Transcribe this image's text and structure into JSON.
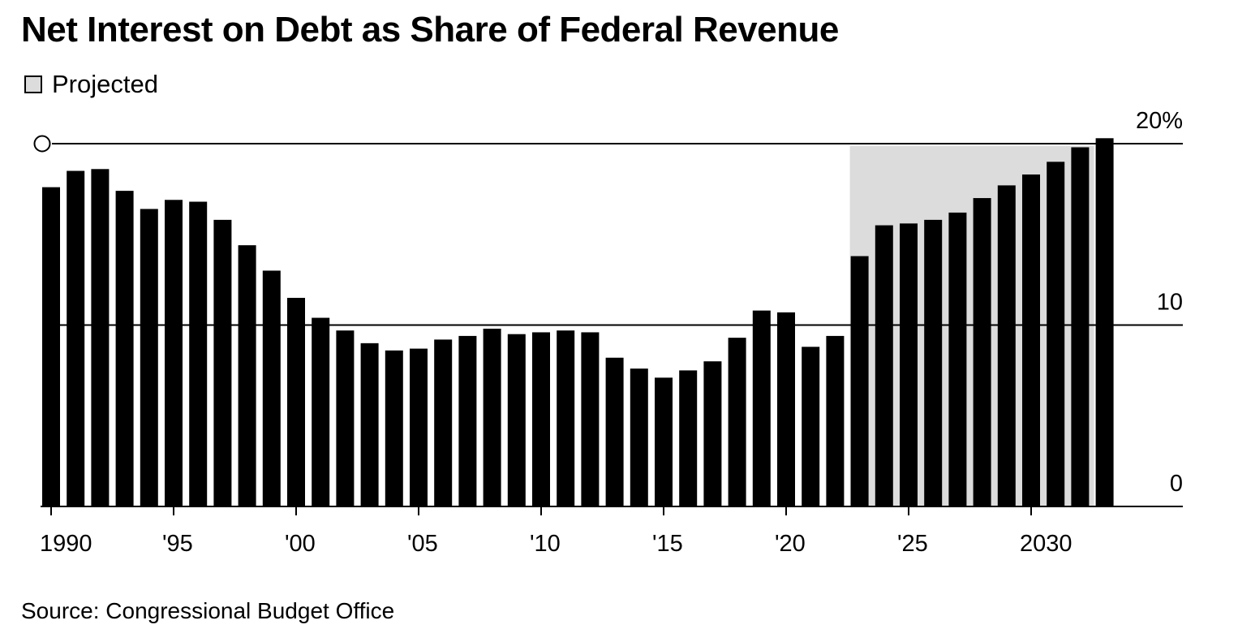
{
  "title": "Net Interest on Debt as Share of Federal Revenue",
  "legend": {
    "projected_label": "Projected"
  },
  "source": "Source: Congressional Budget Office",
  "colors": {
    "bar": "#000000",
    "projected_shade": "#dcdcdc",
    "gridline": "#000000",
    "background": "#ffffff"
  },
  "chart_data": {
    "type": "bar",
    "title": "Net Interest on Debt as Share of Federal Revenue",
    "xlabel": "",
    "ylabel": "",
    "ylim": [
      0,
      20
    ],
    "yticks": [
      {
        "value": 0,
        "label": "0"
      },
      {
        "value": 10,
        "label": "10"
      },
      {
        "value": 20,
        "label": "20%"
      }
    ],
    "xticks": [
      {
        "year": 1990,
        "label": "1990"
      },
      {
        "year": 1995,
        "label": "'95"
      },
      {
        "year": 2000,
        "label": "'00"
      },
      {
        "year": 2005,
        "label": "'05"
      },
      {
        "year": 2010,
        "label": "'10"
      },
      {
        "year": 2015,
        "label": "'15"
      },
      {
        "year": 2020,
        "label": "'20"
      },
      {
        "year": 2025,
        "label": "'25"
      },
      {
        "year": 2030,
        "label": "2030"
      }
    ],
    "projected_from": 2023,
    "projected_through": 2033,
    "grid": true,
    "legend_position": "top-left",
    "categories": [
      1990,
      1991,
      1992,
      1993,
      1994,
      1995,
      1996,
      1997,
      1998,
      1999,
      2000,
      2001,
      2002,
      2003,
      2004,
      2005,
      2006,
      2007,
      2008,
      2009,
      2010,
      2011,
      2012,
      2013,
      2014,
      2015,
      2016,
      2017,
      2018,
      2019,
      2020,
      2021,
      2022,
      2023,
      2024,
      2025,
      2026,
      2027,
      2028,
      2029,
      2030,
      2031,
      2032,
      2033
    ],
    "values": [
      17.6,
      18.5,
      18.6,
      17.4,
      16.4,
      16.9,
      16.8,
      15.8,
      14.4,
      13.0,
      11.5,
      10.4,
      9.7,
      9.0,
      8.6,
      8.7,
      9.2,
      9.4,
      9.8,
      9.5,
      9.6,
      9.7,
      9.6,
      8.2,
      7.6,
      7.1,
      7.5,
      8.0,
      9.3,
      10.8,
      10.7,
      8.8,
      9.4,
      13.8,
      15.5,
      15.6,
      15.8,
      16.2,
      17.0,
      17.7,
      18.3,
      19.0,
      19.8,
      20.3
    ]
  }
}
